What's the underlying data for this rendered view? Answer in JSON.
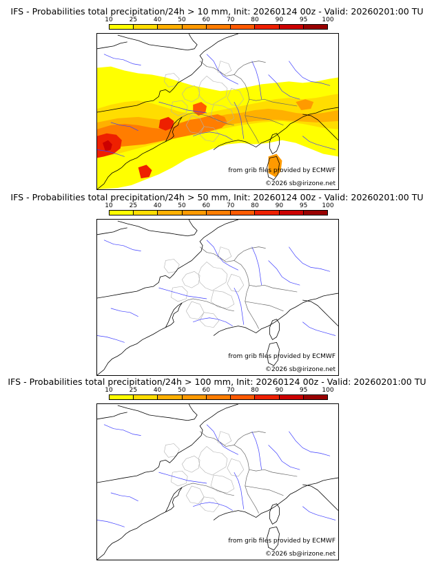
{
  "colorbar": {
    "ticks": [
      "10",
      "25",
      "40",
      "50",
      "60",
      "70",
      "80",
      "90",
      "95",
      "100"
    ],
    "colors": [
      "#ffff00",
      "#ffdd00",
      "#ffb000",
      "#ff9a00",
      "#ff7d00",
      "#ff5a00",
      "#ee2000",
      "#cc0000",
      "#990000",
      "#660000"
    ]
  },
  "panels": [
    {
      "title": "IFS - Probabilities total precipitation/24h > 10 mm, Init: 20260124 00z - Valid: 20260201:00 TU",
      "credit_source": "from grib files provided by ECMWF",
      "credit_copyright": "©2026 sb@irizone.net",
      "has_precip": true
    },
    {
      "title": "IFS - Probabilities total precipitation/24h > 50 mm, Init: 20260124 00z - Valid: 20260201:00 TU",
      "credit_source": "from grib files provided by ECMWF",
      "credit_copyright": "©2026 sb@irizone.net",
      "has_precip": false
    },
    {
      "title": "IFS - Probabilities total precipitation/24h > 100 mm, Init: 20260124 00z - Valid: 20260201:00 TU",
      "credit_source": "from grib files provided by ECMWF",
      "credit_copyright": "©2026 sb@irizone.net",
      "has_precip": false
    }
  ]
}
